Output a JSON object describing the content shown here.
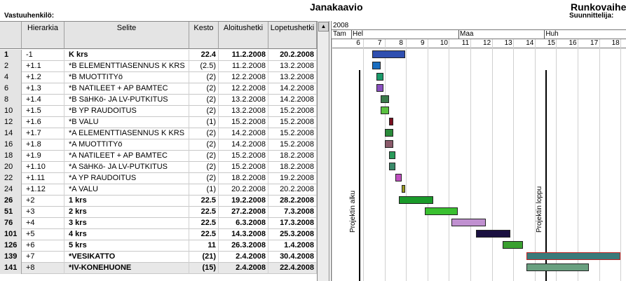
{
  "header": {
    "title": "Janakaavio",
    "title_right": "Runkovaihe",
    "responsible_label": "Vastuuhenkilö:",
    "designer_label": "Suunnittelija:"
  },
  "grid": {
    "columns": [
      "",
      "Hierarkia",
      "Selite",
      "Kesto",
      "Aloitushetki",
      "Lopetushetki"
    ],
    "rows": [
      {
        "num": "1",
        "hier": "-1",
        "desc": "K krs",
        "dur": "22.4",
        "start": "11.2.2008",
        "end": "20.2.2008",
        "bold": true
      },
      {
        "num": "2",
        "hier": "+1.1",
        "desc": "*B ELEMENTTIASENNUS K KRS",
        "dur": "(2.5)",
        "start": "11.2.2008",
        "end": "13.2.2008"
      },
      {
        "num": "4",
        "hier": "+1.2",
        "desc": "*B MUOTTITYö",
        "dur": "(2)",
        "start": "12.2.2008",
        "end": "13.2.2008"
      },
      {
        "num": "6",
        "hier": "+1.3",
        "desc": "*B NATILEET + AP BAMTEC",
        "dur": "(2)",
        "start": "12.2.2008",
        "end": "14.2.2008"
      },
      {
        "num": "8",
        "hier": "+1.4",
        "desc": "*B SäHKö- JA LV-PUTKITUS",
        "dur": "(2)",
        "start": "13.2.2008",
        "end": "14.2.2008"
      },
      {
        "num": "10",
        "hier": "+1.5",
        "desc": "*B YP RAUDOITUS",
        "dur": "(2)",
        "start": "13.2.2008",
        "end": "15.2.2008"
      },
      {
        "num": "12",
        "hier": "+1.6",
        "desc": "*B VALU",
        "dur": "(1)",
        "start": "15.2.2008",
        "end": "15.2.2008"
      },
      {
        "num": "14",
        "hier": "+1.7",
        "desc": "*A ELEMENTTIASENNUS K KRS",
        "dur": "(2)",
        "start": "14.2.2008",
        "end": "15.2.2008"
      },
      {
        "num": "16",
        "hier": "+1.8",
        "desc": "*A MUOTTITYö",
        "dur": "(2)",
        "start": "14.2.2008",
        "end": "15.2.2008"
      },
      {
        "num": "18",
        "hier": "+1.9",
        "desc": "*A NATILEET + AP BAMTEC",
        "dur": "(2)",
        "start": "15.2.2008",
        "end": "18.2.2008"
      },
      {
        "num": "20",
        "hier": "+1.10",
        "desc": "*A SäHKö- JA LV-PUTKITUS",
        "dur": "(2)",
        "start": "15.2.2008",
        "end": "18.2.2008"
      },
      {
        "num": "22",
        "hier": "+1.11",
        "desc": "*A YP RAUDOITUS",
        "dur": "(2)",
        "start": "18.2.2008",
        "end": "19.2.2008"
      },
      {
        "num": "24",
        "hier": "+1.12",
        "desc": "*A VALU",
        "dur": "(1)",
        "start": "20.2.2008",
        "end": "20.2.2008"
      },
      {
        "num": "26",
        "hier": "+2",
        "desc": "1 krs",
        "dur": "22.5",
        "start": "19.2.2008",
        "end": "28.2.2008",
        "bold": true
      },
      {
        "num": "51",
        "hier": "+3",
        "desc": "2 krs",
        "dur": "22.5",
        "start": "27.2.2008",
        "end": "7.3.2008",
        "bold": true
      },
      {
        "num": "76",
        "hier": "+4",
        "desc": "3 krs",
        "dur": "22.5",
        "start": "6.3.2008",
        "end": "17.3.2008",
        "bold": true
      },
      {
        "num": "101",
        "hier": "+5",
        "desc": "4 krs",
        "dur": "22.5",
        "start": "14.3.2008",
        "end": "25.3.2008",
        "bold": true
      },
      {
        "num": "126",
        "hier": "+6",
        "desc": "5 krs",
        "dur": "11",
        "start": "26.3.2008",
        "end": "1.4.2008",
        "bold": true
      },
      {
        "num": "139",
        "hier": "+7",
        "desc": "*VESIKATTO",
        "dur": "(21)",
        "start": "2.4.2008",
        "end": "30.4.2008",
        "bold": true
      },
      {
        "num": "141",
        "hier": "+8",
        "desc": "*IV-KONEHUONE",
        "dur": "(15)",
        "start": "2.4.2008",
        "end": "22.4.2008",
        "bold": true,
        "selected": true
      }
    ]
  },
  "gantt": {
    "year": "2008",
    "months": [
      {
        "label": "Tam",
        "week_index": -1
      },
      {
        "label": "Hel",
        "week_index": 0
      },
      {
        "label": "Maa",
        "week_index": 5
      },
      {
        "label": "Huh",
        "week_index": 9
      }
    ],
    "weeks": [
      "6",
      "7",
      "8",
      "9",
      "10",
      "11",
      "12",
      "13",
      "14",
      "15",
      "16",
      "17",
      "18"
    ],
    "milestones": [
      {
        "label": "Projektin alku",
        "week": 6.3
      },
      {
        "label": "Projektin loppu",
        "week": 15.0
      }
    ],
    "bars": [
      {
        "row": 0,
        "start": 6.9,
        "end": 8.45,
        "color": "#2f4fb0"
      },
      {
        "row": 1,
        "start": 6.9,
        "end": 7.3,
        "color": "#1a6ec0"
      },
      {
        "row": 2,
        "start": 7.1,
        "end": 7.45,
        "color": "#1a9a6a"
      },
      {
        "row": 3,
        "start": 7.1,
        "end": 7.45,
        "color": "#8a4fc0"
      },
      {
        "row": 4,
        "start": 7.3,
        "end": 7.7,
        "color": "#3a7a4a"
      },
      {
        "row": 5,
        "start": 7.3,
        "end": 7.7,
        "color": "#5ac040"
      },
      {
        "row": 6,
        "start": 7.7,
        "end": 7.9,
        "color": "#7a1020"
      },
      {
        "row": 7,
        "start": 7.5,
        "end": 7.9,
        "color": "#2a8a3a"
      },
      {
        "row": 8,
        "start": 7.5,
        "end": 7.9,
        "color": "#8a5a6a"
      },
      {
        "row": 9,
        "start": 7.7,
        "end": 8.0,
        "color": "#2a9a5a"
      },
      {
        "row": 10,
        "start": 7.7,
        "end": 8.0,
        "color": "#3a8a6a"
      },
      {
        "row": 11,
        "start": 8.0,
        "end": 8.3,
        "color": "#c050c0"
      },
      {
        "row": 12,
        "start": 8.3,
        "end": 8.45,
        "color": "#9a9a20"
      },
      {
        "row": 13,
        "start": 8.15,
        "end": 9.75,
        "color": "#1a9a2a"
      },
      {
        "row": 14,
        "start": 9.35,
        "end": 10.9,
        "color": "#3ac030"
      },
      {
        "row": 15,
        "start": 10.6,
        "end": 12.2,
        "color": "#c090d0"
      },
      {
        "row": 16,
        "start": 11.75,
        "end": 13.35,
        "color": "#1a1040"
      },
      {
        "row": 17,
        "start": 13.0,
        "end": 13.95,
        "color": "#3aa030"
      },
      {
        "row": 18,
        "start": 14.1,
        "end": 18.5,
        "color": "#3a7a7a"
      },
      {
        "row": 19,
        "start": 14.1,
        "end": 17.0,
        "color": "#6aa080"
      }
    ]
  }
}
